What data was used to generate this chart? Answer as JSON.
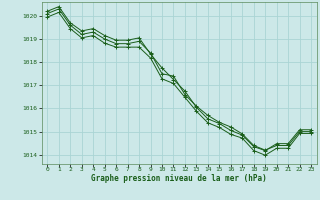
{
  "title": "Graphe pression niveau de la mer (hPa)",
  "bg_color": "#cce8e8",
  "grid_color": "#aad4d4",
  "line_color": "#1a5e1a",
  "spine_color": "#5a8a5a",
  "xlim": [
    -0.5,
    23.5
  ],
  "ylim": [
    1013.6,
    1020.6
  ],
  "yticks": [
    1014,
    1015,
    1016,
    1017,
    1018,
    1019,
    1020
  ],
  "xticks": [
    0,
    1,
    2,
    3,
    4,
    5,
    6,
    7,
    8,
    9,
    10,
    11,
    12,
    13,
    14,
    15,
    16,
    17,
    18,
    19,
    20,
    21,
    22,
    23
  ],
  "series": [
    [
      1020.1,
      1020.3,
      1019.6,
      1019.2,
      1019.3,
      1019.0,
      1018.8,
      1018.8,
      1018.9,
      1018.4,
      1017.5,
      1017.4,
      1016.6,
      1016.1,
      1015.7,
      1015.4,
      1015.2,
      1014.9,
      1014.4,
      1014.2,
      1014.4,
      1014.4,
      1015.0,
      1015.0
    ],
    [
      1020.2,
      1020.4,
      1019.7,
      1019.35,
      1019.45,
      1019.15,
      1018.95,
      1018.95,
      1019.05,
      1018.35,
      1017.75,
      1017.25,
      1016.75,
      1016.05,
      1015.55,
      1015.35,
      1015.05,
      1014.85,
      1014.35,
      1014.18,
      1014.48,
      1014.48,
      1015.08,
      1015.08
    ],
    [
      1019.95,
      1020.15,
      1019.45,
      1019.05,
      1019.15,
      1018.82,
      1018.65,
      1018.65,
      1018.65,
      1018.18,
      1017.28,
      1017.08,
      1016.48,
      1015.88,
      1015.38,
      1015.18,
      1014.88,
      1014.72,
      1014.18,
      1013.98,
      1014.28,
      1014.28,
      1014.92,
      1014.92
    ]
  ]
}
